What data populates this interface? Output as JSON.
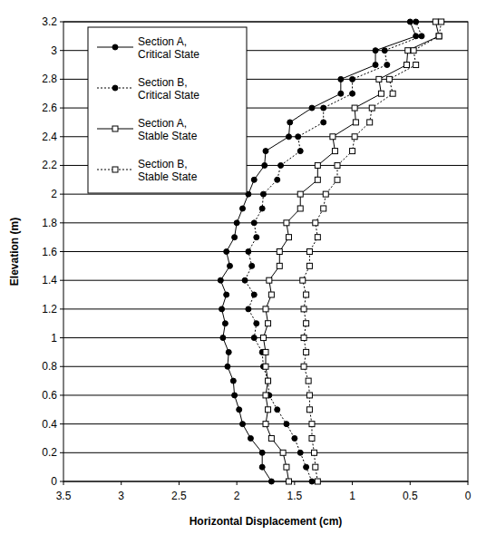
{
  "chart_data": {
    "type": "line",
    "x_label": "Horizontal Displacement (cm)",
    "y_label": "Elevation (m)",
    "xlim": [
      3.5,
      0
    ],
    "xticks": [
      3.5,
      3,
      2.5,
      2,
      1.5,
      1,
      0.5,
      0
    ],
    "ylim": [
      0,
      3.2
    ],
    "yticks": [
      0,
      0.2,
      0.4,
      0.6,
      0.8,
      1,
      1.2,
      1.4,
      1.6,
      1.8,
      2,
      2.2,
      2.4,
      2.6,
      2.8,
      3,
      3.2
    ],
    "grid": true,
    "legend": "upper left",
    "y": [
      0,
      0.1,
      0.2,
      0.3,
      0.4,
      0.5,
      0.6,
      0.7,
      0.8,
      0.9,
      1.0,
      1.1,
      1.2,
      1.3,
      1.4,
      1.5,
      1.6,
      1.7,
      1.8,
      1.9,
      2.0,
      2.1,
      2.2,
      2.3,
      2.4,
      2.5,
      2.6,
      2.7,
      2.8,
      2.9,
      3.0,
      3.1,
      3.2
    ],
    "series": [
      {
        "name": "Section A, Critical State",
        "color": "#000000",
        "marker": "circle",
        "line_style": "solid",
        "values": [
          1.7,
          1.78,
          1.78,
          1.88,
          1.95,
          1.98,
          2.02,
          2.03,
          2.08,
          2.07,
          2.12,
          2.1,
          2.13,
          2.09,
          2.14,
          2.06,
          2.09,
          2.02,
          2.0,
          1.95,
          1.9,
          1.85,
          1.76,
          1.75,
          1.55,
          1.54,
          1.35,
          1.1,
          1.1,
          0.8,
          0.8,
          0.45,
          0.5
        ]
      },
      {
        "name": "Section B, Critical State",
        "color": "#000000",
        "marker": "circle",
        "line_style": "dotted",
        "values": [
          1.35,
          1.4,
          1.45,
          1.5,
          1.57,
          1.65,
          1.72,
          1.73,
          1.77,
          1.78,
          1.85,
          1.83,
          1.9,
          1.85,
          1.93,
          1.87,
          1.9,
          1.83,
          1.85,
          1.78,
          1.77,
          1.65,
          1.62,
          1.45,
          1.47,
          1.25,
          1.25,
          1.0,
          1.0,
          0.7,
          0.72,
          0.4,
          0.45
        ]
      },
      {
        "name": "Section A, Stable State",
        "color": "#000000",
        "marker": "square",
        "line_style": "solid",
        "values": [
          1.55,
          1.57,
          1.6,
          1.7,
          1.75,
          1.73,
          1.75,
          1.73,
          1.75,
          1.75,
          1.77,
          1.73,
          1.75,
          1.7,
          1.72,
          1.63,
          1.63,
          1.55,
          1.57,
          1.45,
          1.45,
          1.3,
          1.3,
          1.15,
          1.17,
          0.97,
          0.98,
          0.75,
          0.77,
          0.53,
          0.52,
          0.25,
          0.28
        ]
      },
      {
        "name": "Section B, Stable State",
        "color": "#000000",
        "marker": "square",
        "line_style": "dotted",
        "values": [
          1.3,
          1.32,
          1.33,
          1.35,
          1.35,
          1.37,
          1.37,
          1.38,
          1.42,
          1.4,
          1.42,
          1.4,
          1.42,
          1.4,
          1.43,
          1.37,
          1.37,
          1.3,
          1.32,
          1.25,
          1.23,
          1.13,
          1.13,
          1.0,
          0.98,
          0.85,
          0.83,
          0.65,
          0.68,
          0.45,
          0.47,
          0.25,
          0.23
        ]
      }
    ]
  }
}
